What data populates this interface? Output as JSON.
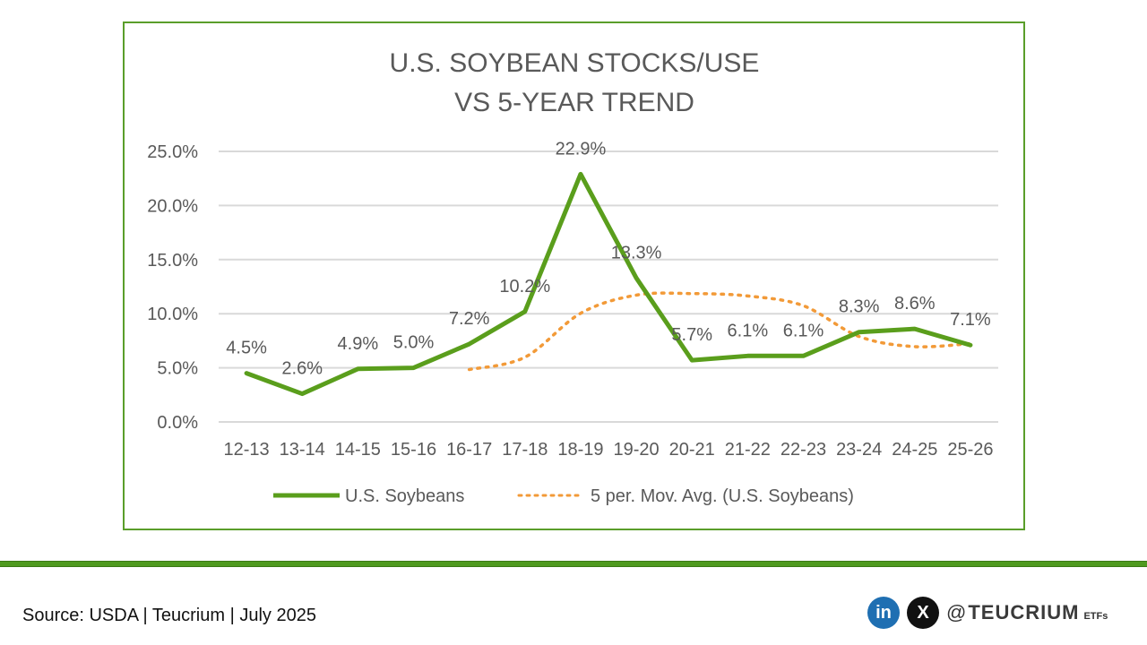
{
  "chart_data": {
    "type": "line",
    "title": [
      "U.S. SOYBEAN STOCKS/USE",
      "VS 5-YEAR TREND"
    ],
    "categories": [
      "12-13",
      "13-14",
      "14-15",
      "15-16",
      "16-17",
      "17-18",
      "18-19",
      "19-20",
      "20-21",
      "21-22",
      "22-23",
      "23-24",
      "24-25",
      "25-26"
    ],
    "ylim": [
      0,
      25
    ],
    "yticks": [
      "0.0%",
      "5.0%",
      "10.0%",
      "15.0%",
      "20.0%",
      "25.0%"
    ],
    "grid": true,
    "legend_position": "bottom",
    "series": [
      {
        "name": "U.S. Soybeans",
        "style": "solid",
        "color": "#5a9e1c",
        "values": [
          4.5,
          2.6,
          4.9,
          5.0,
          7.2,
          10.2,
          22.9,
          13.3,
          5.7,
          6.1,
          6.1,
          8.3,
          8.6,
          7.1
        ],
        "labels": [
          "4.5%",
          "2.6%",
          "4.9%",
          "5.0%",
          "7.2%",
          "10.2%",
          "22.9%",
          "13.3%",
          "5.7%",
          "6.1%",
          "6.1%",
          "8.3%",
          "8.6%",
          "7.1%"
        ]
      },
      {
        "name": "5 per. Mov. Avg. (U.S. Soybeans)",
        "style": "dotted",
        "color": "#f29a38",
        "values": [
          null,
          null,
          null,
          null,
          4.84,
          5.98,
          10.04,
          11.72,
          11.86,
          11.64,
          10.74,
          7.9,
          6.96,
          7.24
        ]
      }
    ]
  },
  "footer": {
    "source": "Source: USDA | Teucrium | July 2025",
    "handle_at": "@",
    "brand": "TEUCRIUM",
    "brand_suffix": "ETFs",
    "linkedin_glyph": "in",
    "x_glyph": "X"
  },
  "colors": {
    "frame": "#5a9e2a",
    "divider": "#4f9a1f",
    "grid": "#d9d9d9",
    "text": "#595959"
  }
}
